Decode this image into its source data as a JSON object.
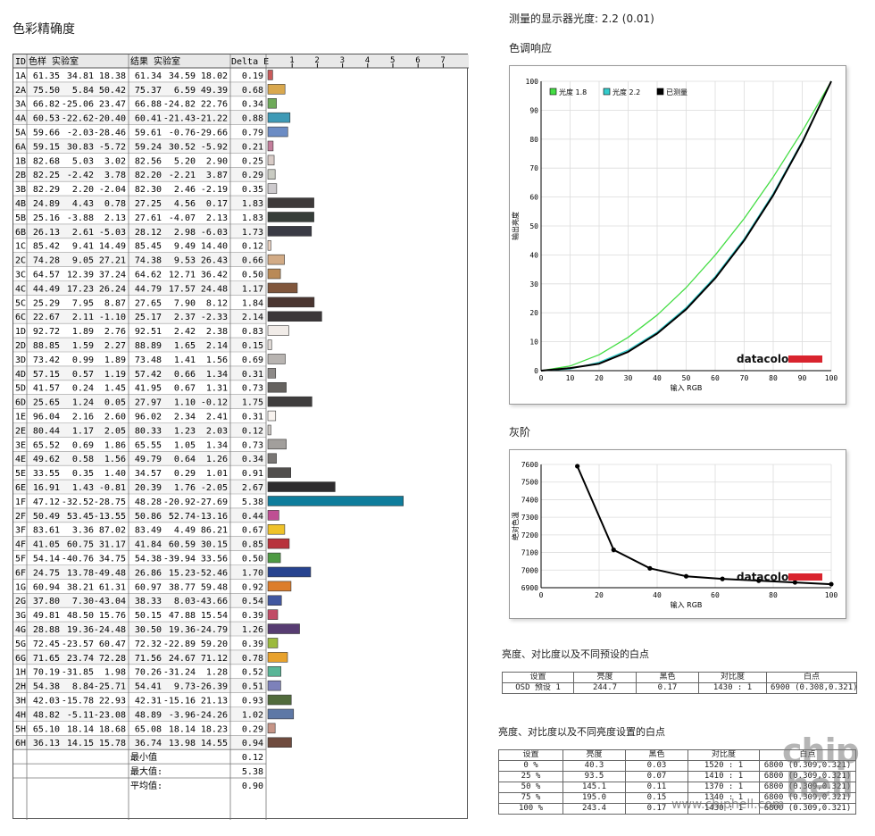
{
  "titles": {
    "color_accuracy": "色彩精确度",
    "measured_gamma": "测量的显示器光度: 2.2 (0.01)",
    "tone_response": "色调响应",
    "grayscale": "灰阶",
    "white_presets": "亮度、对比度以及不同预设的白点",
    "white_brightness": "亮度、对比度以及不同亮度设置的白点"
  },
  "accuracy_table": {
    "headers": {
      "id": "ID",
      "ref": "色样 实验室",
      "meas": "结果 实验室",
      "de": "Delta E"
    },
    "scale_ticks": [
      "1",
      "2",
      "3",
      "4",
      "5",
      "6",
      "7"
    ],
    "rows": [
      {
        "id": "1A",
        "ref": [
          "61.35",
          "34.81",
          "18.38"
        ],
        "meas": [
          "61.34",
          "34.59",
          "18.02"
        ],
        "de": "0.19",
        "color": "#c85a5a"
      },
      {
        "id": "2A",
        "ref": [
          "75.50",
          "5.84",
          "50.42"
        ],
        "meas": [
          "75.37",
          "6.59",
          "49.39"
        ],
        "de": "0.68",
        "color": "#d9a84e"
      },
      {
        "id": "3A",
        "ref": [
          "66.82",
          "-25.06",
          "23.47"
        ],
        "meas": [
          "66.88",
          "-24.82",
          "22.76"
        ],
        "de": "0.34",
        "color": "#6faa5a"
      },
      {
        "id": "4A",
        "ref": [
          "60.53",
          "-22.62",
          "-20.40"
        ],
        "meas": [
          "60.41",
          "-21.43",
          "-21.22"
        ],
        "de": "0.88",
        "color": "#3e9ab6"
      },
      {
        "id": "5A",
        "ref": [
          "59.66",
          "-2.03",
          "-28.46"
        ],
        "meas": [
          "59.61",
          "-0.76",
          "-29.66"
        ],
        "de": "0.79",
        "color": "#6c8cc4"
      },
      {
        "id": "6A",
        "ref": [
          "59.15",
          "30.83",
          "-5.72"
        ],
        "meas": [
          "59.24",
          "30.52",
          "-5.92"
        ],
        "de": "0.21",
        "color": "#c47e9c"
      },
      {
        "id": "1B",
        "ref": [
          "82.68",
          "5.03",
          "3.02"
        ],
        "meas": [
          "82.56",
          "5.20",
          "2.90"
        ],
        "de": "0.25",
        "color": "#d8cbc6"
      },
      {
        "id": "2B",
        "ref": [
          "82.25",
          "-2.42",
          "3.78"
        ],
        "meas": [
          "82.20",
          "-2.21",
          "3.87"
        ],
        "de": "0.29",
        "color": "#c9cbc2"
      },
      {
        "id": "3B",
        "ref": [
          "82.29",
          "2.20",
          "-2.04"
        ],
        "meas": [
          "82.30",
          "2.46",
          "-2.19"
        ],
        "de": "0.35",
        "color": "#cdcacd"
      },
      {
        "id": "4B",
        "ref": [
          "24.89",
          "4.43",
          "0.78"
        ],
        "meas": [
          "27.25",
          "4.56",
          "0.17"
        ],
        "de": "1.83",
        "color": "#3e3a3a"
      },
      {
        "id": "5B",
        "ref": [
          "25.16",
          "-3.88",
          "2.13"
        ],
        "meas": [
          "27.61",
          "-4.07",
          "2.13"
        ],
        "de": "1.83",
        "color": "#363d39"
      },
      {
        "id": "6B",
        "ref": [
          "26.13",
          "2.61",
          "-5.03"
        ],
        "meas": [
          "28.12",
          "2.98",
          "-6.03"
        ],
        "de": "1.73",
        "color": "#3a3b45"
      },
      {
        "id": "1C",
        "ref": [
          "85.42",
          "9.41",
          "14.49"
        ],
        "meas": [
          "85.45",
          "9.49",
          "14.40"
        ],
        "de": "0.12",
        "color": "#ecd2c0"
      },
      {
        "id": "2C",
        "ref": [
          "74.28",
          "9.05",
          "27.21"
        ],
        "meas": [
          "74.38",
          "9.53",
          "26.43"
        ],
        "de": "0.66",
        "color": "#d2ab86"
      },
      {
        "id": "3C",
        "ref": [
          "64.57",
          "12.39",
          "37.24"
        ],
        "meas": [
          "64.62",
          "12.71",
          "36.42"
        ],
        "de": "0.50",
        "color": "#b98a57"
      },
      {
        "id": "4C",
        "ref": [
          "44.49",
          "17.23",
          "26.24"
        ],
        "meas": [
          "44.79",
          "17.57",
          "24.48"
        ],
        "de": "1.17",
        "color": "#80563c"
      },
      {
        "id": "5C",
        "ref": [
          "25.29",
          "7.95",
          "8.87"
        ],
        "meas": [
          "27.65",
          "7.90",
          "8.12"
        ],
        "de": "1.84",
        "color": "#4a3530"
      },
      {
        "id": "6C",
        "ref": [
          "22.67",
          "2.11",
          "-1.10"
        ],
        "meas": [
          "25.17",
          "2.37",
          "-2.33"
        ],
        "de": "2.14",
        "color": "#3b3739"
      },
      {
        "id": "1D",
        "ref": [
          "92.72",
          "1.89",
          "2.76"
        ],
        "meas": [
          "92.51",
          "2.42",
          "2.38"
        ],
        "de": "0.83",
        "color": "#f1ece8"
      },
      {
        "id": "2D",
        "ref": [
          "88.85",
          "1.59",
          "2.27"
        ],
        "meas": [
          "88.89",
          "1.65",
          "2.14"
        ],
        "de": "0.15",
        "color": "#e2dcd8"
      },
      {
        "id": "3D",
        "ref": [
          "73.42",
          "0.99",
          "1.89"
        ],
        "meas": [
          "73.48",
          "1.41",
          "1.56"
        ],
        "de": "0.69",
        "color": "#b8b4b1"
      },
      {
        "id": "4D",
        "ref": [
          "57.15",
          "0.57",
          "1.19"
        ],
        "meas": [
          "57.42",
          "0.66",
          "1.34"
        ],
        "de": "0.31",
        "color": "#8d8a88"
      },
      {
        "id": "5D",
        "ref": [
          "41.57",
          "0.24",
          "1.45"
        ],
        "meas": [
          "41.95",
          "0.67",
          "1.31"
        ],
        "de": "0.73",
        "color": "#65625f"
      },
      {
        "id": "6D",
        "ref": [
          "25.65",
          "1.24",
          "0.05"
        ],
        "meas": [
          "27.97",
          "1.10",
          "-0.12"
        ],
        "de": "1.75",
        "color": "#3f3d3d"
      },
      {
        "id": "1E",
        "ref": [
          "96.04",
          "2.16",
          "2.60"
        ],
        "meas": [
          "96.02",
          "2.34",
          "2.41"
        ],
        "de": "0.31",
        "color": "#f8f3ef"
      },
      {
        "id": "2E",
        "ref": [
          "80.44",
          "1.17",
          "2.05"
        ],
        "meas": [
          "80.33",
          "1.23",
          "2.03"
        ],
        "de": "0.12",
        "color": "#cbc7c3"
      },
      {
        "id": "3E",
        "ref": [
          "65.52",
          "0.69",
          "1.86"
        ],
        "meas": [
          "65.55",
          "1.05",
          "1.34"
        ],
        "de": "0.73",
        "color": "#a29f9c"
      },
      {
        "id": "4E",
        "ref": [
          "49.62",
          "0.58",
          "1.56"
        ],
        "meas": [
          "49.79",
          "0.64",
          "1.26"
        ],
        "de": "0.34",
        "color": "#797674"
      },
      {
        "id": "5E",
        "ref": [
          "33.55",
          "0.35",
          "1.40"
        ],
        "meas": [
          "34.57",
          "0.29",
          "1.01"
        ],
        "de": "0.91",
        "color": "#514f4d"
      },
      {
        "id": "6E",
        "ref": [
          "16.91",
          "1.43",
          "-0.81"
        ],
        "meas": [
          "20.39",
          "1.76",
          "-2.05"
        ],
        "de": "2.67",
        "color": "#2e2c2e"
      },
      {
        "id": "1F",
        "ref": [
          "47.12",
          "-32.52",
          "-28.75"
        ],
        "meas": [
          "48.28",
          "-20.92",
          "-27.69"
        ],
        "de": "5.38",
        "color": "#0f7d9c"
      },
      {
        "id": "2F",
        "ref": [
          "50.49",
          "53.45",
          "-13.55"
        ],
        "meas": [
          "50.86",
          "52.74",
          "-13.16"
        ],
        "de": "0.44",
        "color": "#bf4f93"
      },
      {
        "id": "3F",
        "ref": [
          "83.61",
          "3.36",
          "87.02"
        ],
        "meas": [
          "83.49",
          "4.49",
          "86.21"
        ],
        "de": "0.67",
        "color": "#efc22a"
      },
      {
        "id": "4F",
        "ref": [
          "41.05",
          "60.75",
          "31.17"
        ],
        "meas": [
          "41.84",
          "60.59",
          "30.15"
        ],
        "de": "0.85",
        "color": "#b8333c"
      },
      {
        "id": "5F",
        "ref": [
          "54.14",
          "-40.76",
          "34.75"
        ],
        "meas": [
          "54.38",
          "-39.94",
          "33.56"
        ],
        "de": "0.50",
        "color": "#4e9a43"
      },
      {
        "id": "6F",
        "ref": [
          "24.75",
          "13.78",
          "-49.48"
        ],
        "meas": [
          "26.86",
          "15.23",
          "-52.46"
        ],
        "de": "1.70",
        "color": "#27438f"
      },
      {
        "id": "1G",
        "ref": [
          "60.94",
          "38.21",
          "61.31"
        ],
        "meas": [
          "60.97",
          "38.77",
          "59.48"
        ],
        "de": "0.92",
        "color": "#dc7d2c"
      },
      {
        "id": "2G",
        "ref": [
          "37.80",
          "7.30",
          "-43.04"
        ],
        "meas": [
          "38.33",
          "8.03",
          "-43.66"
        ],
        "de": "0.54",
        "color": "#4157a0"
      },
      {
        "id": "3G",
        "ref": [
          "49.81",
          "48.50",
          "15.76"
        ],
        "meas": [
          "50.15",
          "47.88",
          "15.54"
        ],
        "de": "0.39",
        "color": "#c14d66"
      },
      {
        "id": "4G",
        "ref": [
          "28.88",
          "19.36",
          "-24.48"
        ],
        "meas": [
          "30.50",
          "19.36",
          "-24.79"
        ],
        "de": "1.26",
        "color": "#573c72"
      },
      {
        "id": "5G",
        "ref": [
          "72.45",
          "-23.57",
          "60.47"
        ],
        "meas": [
          "72.32",
          "-22.89",
          "59.20"
        ],
        "de": "0.39",
        "color": "#9cba3e"
      },
      {
        "id": "6G",
        "ref": [
          "71.65",
          "23.74",
          "72.28"
        ],
        "meas": [
          "71.56",
          "24.67",
          "71.12"
        ],
        "de": "0.78",
        "color": "#e8a22c"
      },
      {
        "id": "1H",
        "ref": [
          "70.19",
          "-31.85",
          "1.98"
        ],
        "meas": [
          "70.26",
          "-31.24",
          "1.28"
        ],
        "de": "0.52",
        "color": "#5ab597"
      },
      {
        "id": "2H",
        "ref": [
          "54.38",
          "8.84",
          "-25.71"
        ],
        "meas": [
          "54.41",
          "9.73",
          "-26.39"
        ],
        "de": "0.51",
        "color": "#7d81ba"
      },
      {
        "id": "3H",
        "ref": [
          "42.03",
          "-15.78",
          "22.93"
        ],
        "meas": [
          "42.31",
          "-15.16",
          "21.13"
        ],
        "de": "0.93",
        "color": "#516b3c"
      },
      {
        "id": "4H",
        "ref": [
          "48.82",
          "-5.11",
          "-23.08"
        ],
        "meas": [
          "48.89",
          "-3.96",
          "-24.26"
        ],
        "de": "1.02",
        "color": "#5e78a6"
      },
      {
        "id": "5H",
        "ref": [
          "65.10",
          "18.14",
          "18.68"
        ],
        "meas": [
          "65.08",
          "18.14",
          "18.23"
        ],
        "de": "0.29",
        "color": "#c69587"
      },
      {
        "id": "6H",
        "ref": [
          "36.13",
          "14.15",
          "15.78"
        ],
        "meas": [
          "36.74",
          "13.98",
          "14.55"
        ],
        "de": "0.94",
        "color": "#6f4b3e"
      }
    ],
    "summary": [
      {
        "label": "最小值",
        "value": "0.12"
      },
      {
        "label": "最大值:",
        "value": "5.38"
      },
      {
        "label": "平均值:",
        "value": "0.90"
      }
    ]
  },
  "chart_data": [
    {
      "type": "line",
      "legend": [
        "光度 1.8",
        "光度 2.2",
        "已测量"
      ],
      "legend_colors": [
        "#44dd44",
        "#33cccc",
        "#000000"
      ],
      "xlabel": "输入 RGB",
      "ylabel": "输出亮度",
      "xlim": [
        0,
        100
      ],
      "ylim": [
        0,
        100
      ],
      "xticks": [
        0,
        10,
        20,
        30,
        40,
        50,
        60,
        70,
        80,
        90,
        100
      ],
      "yticks": [
        0,
        10,
        20,
        30,
        40,
        50,
        60,
        70,
        80,
        90,
        100
      ],
      "grid": true,
      "series": [
        {
          "name": "光度 1.8",
          "x": [
            0,
            10,
            20,
            30,
            40,
            50,
            60,
            70,
            80,
            90,
            100
          ],
          "values": [
            0,
            1.6,
            5.5,
            11.5,
            19.2,
            28.7,
            39.9,
            52.6,
            66.9,
            82.7,
            100
          ]
        },
        {
          "name": "光度 2.2",
          "x": [
            0,
            10,
            20,
            30,
            40,
            50,
            60,
            70,
            80,
            90,
            100
          ],
          "values": [
            0,
            0.6,
            2.9,
            7.1,
            13.3,
            21.8,
            32.5,
            45.6,
            61.2,
            79.3,
            100
          ]
        },
        {
          "name": "已测量",
          "x": [
            0,
            10,
            20,
            30,
            40,
            50,
            60,
            70,
            80,
            90,
            100
          ],
          "values": [
            0,
            0.9,
            2.4,
            6.5,
            12.8,
            21.2,
            31.9,
            45.0,
            60.6,
            78.9,
            100
          ]
        }
      ],
      "brand": "datacolor"
    },
    {
      "type": "line",
      "xlabel": "输入 RGB",
      "ylabel": "绝对色温",
      "xlim": [
        0,
        100
      ],
      "ylim": [
        6900,
        7600
      ],
      "xticks": [
        0,
        20,
        40,
        60,
        80,
        100
      ],
      "yticks": [
        6900,
        7000,
        7100,
        7200,
        7300,
        7400,
        7500,
        7600
      ],
      "grid": true,
      "series": [
        {
          "name": "",
          "x": [
            12.5,
            25,
            37.5,
            50,
            62.5,
            75,
            87.5,
            100
          ],
          "values": [
            7590,
            7115,
            7010,
            6965,
            6950,
            6940,
            6930,
            6920
          ]
        }
      ],
      "brand": "datacolor"
    }
  ],
  "preset_table": {
    "headers": [
      "设置",
      "亮度",
      "黑色",
      "对比度",
      "白点"
    ],
    "rows": [
      [
        "OSD 预设 1",
        "244.7",
        "0.17",
        "1430 : 1",
        "6900 (0.308,0.321)"
      ]
    ]
  },
  "brightness_table": {
    "headers": [
      "设置",
      "亮度",
      "黑色",
      "对比度",
      "白点"
    ],
    "rows": [
      [
        "0 %",
        "40.3",
        "0.03",
        "1520 : 1",
        "6800 (0.309,0.321)"
      ],
      [
        "25 %",
        "93.5",
        "0.07",
        "1410 : 1",
        "6800 (0.309,0.321)"
      ],
      [
        "50 %",
        "145.1",
        "0.11",
        "1370 : 1",
        "6800 (0.309,0.321)"
      ],
      [
        "75 %",
        "195.0",
        "0.15",
        "1340 : 1",
        "6800 (0.309,0.321)"
      ],
      [
        "100 %",
        "243.4",
        "0.17",
        "1430 : 1",
        "6800 (0.309,0.321)"
      ]
    ]
  },
  "watermark": {
    "line1": "chip",
    "line2": "hell",
    "url": "www.chiphell.com"
  }
}
